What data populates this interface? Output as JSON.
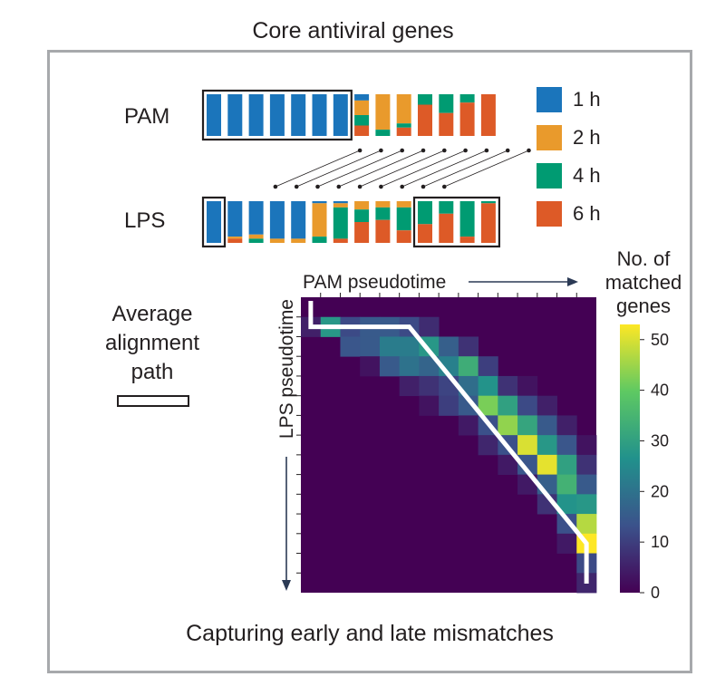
{
  "title": "Core antiviral genes",
  "caption": "Capturing early and late mismatches",
  "average_path_label": [
    "Average",
    "alignment",
    "path"
  ],
  "colors": {
    "t1": "#1b75bb",
    "t2": "#e99a2c",
    "t4": "#009b72",
    "t6": "#dd5a27",
    "frame": "#a7a9ac",
    "arrow": "#2b3a55",
    "path": "#ffffff"
  },
  "chart_data": [
    {
      "type": "bar",
      "subtype": "stacked-composition",
      "legend": {
        "placement": "right",
        "entries": [
          "1 h",
          "2 h",
          "4 h",
          "6 h"
        ]
      },
      "rows": [
        {
          "label": "PAM",
          "bars": [
            [
              1,
              0,
              0,
              0
            ],
            [
              1,
              0,
              0,
              0
            ],
            [
              1,
              0,
              0,
              0
            ],
            [
              1,
              0,
              0,
              0
            ],
            [
              1,
              0,
              0,
              0
            ],
            [
              1,
              0,
              0,
              0
            ],
            [
              1,
              0,
              0,
              0
            ],
            [
              0.15,
              0.35,
              0.25,
              0.25
            ],
            [
              0,
              0.85,
              0.15,
              0
            ],
            [
              0,
              0.7,
              0.1,
              0.2
            ],
            [
              0,
              0,
              0.25,
              0.75
            ],
            [
              0,
              0,
              0.45,
              0.55
            ],
            [
              0,
              0,
              0.2,
              0.8
            ],
            [
              0,
              0,
              0,
              1
            ]
          ],
          "boxed_ranges": [
            [
              1,
              7
            ]
          ]
        },
        {
          "label": "LPS",
          "bars": [
            [
              1,
              0,
              0,
              0
            ],
            [
              0.85,
              0.05,
              0,
              0.1
            ],
            [
              0.8,
              0.1,
              0.1,
              0
            ],
            [
              0.9,
              0.1,
              0,
              0
            ],
            [
              0.9,
              0.1,
              0,
              0
            ],
            [
              0.05,
              0.8,
              0.15,
              0
            ],
            [
              0.05,
              0.1,
              0.75,
              0.1
            ],
            [
              0,
              0.2,
              0.3,
              0.5
            ],
            [
              0,
              0.15,
              0.3,
              0.55
            ],
            [
              0,
              0.15,
              0.55,
              0.3
            ],
            [
              0,
              0,
              0.55,
              0.45
            ],
            [
              0,
              0,
              0.3,
              0.7
            ],
            [
              0,
              0,
              0.85,
              0.15
            ],
            [
              0,
              0,
              0.05,
              0.95
            ]
          ],
          "boxed_ranges": [
            [
              1,
              1
            ],
            [
              11,
              14
            ]
          ]
        }
      ],
      "matches": [
        [
          8,
          4
        ],
        [
          9,
          5
        ],
        [
          10,
          6
        ],
        [
          11,
          7
        ],
        [
          12,
          8
        ],
        [
          13,
          9
        ],
        [
          14,
          10
        ],
        [
          15,
          11
        ],
        [
          16,
          12
        ]
      ]
    },
    {
      "type": "heatmap",
      "xlabel": "PAM pseudotime",
      "ylabel": "LPS pseudotime",
      "colorbar": {
        "title": "No. of matched genes",
        "ticks": [
          0,
          10,
          20,
          30,
          40,
          50
        ],
        "range": [
          0,
          53
        ]
      },
      "size": [
        15,
        15
      ],
      "cells": [
        [
          1,
          0,
          5
        ],
        [
          1,
          1,
          28
        ],
        [
          1,
          2,
          12
        ],
        [
          1,
          3,
          15
        ],
        [
          1,
          4,
          15
        ],
        [
          1,
          5,
          12
        ],
        [
          1,
          6,
          7
        ],
        [
          2,
          2,
          14
        ],
        [
          2,
          3,
          15
        ],
        [
          2,
          4,
          22
        ],
        [
          2,
          5,
          22
        ],
        [
          2,
          6,
          28
        ],
        [
          2,
          7,
          16
        ],
        [
          2,
          8,
          8
        ],
        [
          3,
          3,
          3
        ],
        [
          3,
          4,
          15
        ],
        [
          3,
          5,
          20
        ],
        [
          3,
          6,
          17
        ],
        [
          3,
          7,
          23
        ],
        [
          3,
          8,
          33
        ],
        [
          3,
          9,
          10
        ],
        [
          4,
          5,
          5
        ],
        [
          4,
          6,
          8
        ],
        [
          4,
          7,
          11
        ],
        [
          4,
          8,
          19
        ],
        [
          4,
          9,
          27
        ],
        [
          4,
          10,
          8
        ],
        [
          4,
          11,
          3
        ],
        [
          5,
          6,
          3
        ],
        [
          5,
          7,
          10
        ],
        [
          5,
          8,
          15
        ],
        [
          5,
          9,
          42
        ],
        [
          5,
          10,
          30
        ],
        [
          5,
          11,
          12
        ],
        [
          5,
          12,
          5
        ],
        [
          6,
          8,
          4
        ],
        [
          6,
          9,
          13
        ],
        [
          6,
          10,
          44
        ],
        [
          6,
          11,
          31
        ],
        [
          6,
          12,
          15
        ],
        [
          6,
          13,
          5
        ],
        [
          7,
          9,
          6
        ],
        [
          7,
          10,
          13
        ],
        [
          7,
          11,
          50
        ],
        [
          7,
          12,
          28
        ],
        [
          7,
          13,
          14
        ],
        [
          7,
          14,
          3
        ],
        [
          8,
          10,
          4
        ],
        [
          8,
          11,
          14
        ],
        [
          8,
          12,
          51
        ],
        [
          8,
          13,
          30
        ],
        [
          8,
          14,
          8
        ],
        [
          9,
          11,
          4
        ],
        [
          9,
          12,
          16
        ],
        [
          9,
          13,
          34
        ],
        [
          9,
          14,
          15
        ],
        [
          10,
          12,
          8
        ],
        [
          10,
          13,
          27
        ],
        [
          10,
          14,
          28
        ],
        [
          11,
          13,
          13
        ],
        [
          11,
          14,
          47
        ],
        [
          12,
          13,
          4
        ],
        [
          12,
          14,
          53
        ],
        [
          13,
          14,
          12
        ],
        [
          14,
          14,
          6
        ]
      ],
      "alignment_path": [
        [
          0,
          0
        ],
        [
          1,
          0
        ],
        [
          1,
          5
        ],
        [
          12,
          14
        ],
        [
          14,
          14
        ]
      ]
    }
  ]
}
